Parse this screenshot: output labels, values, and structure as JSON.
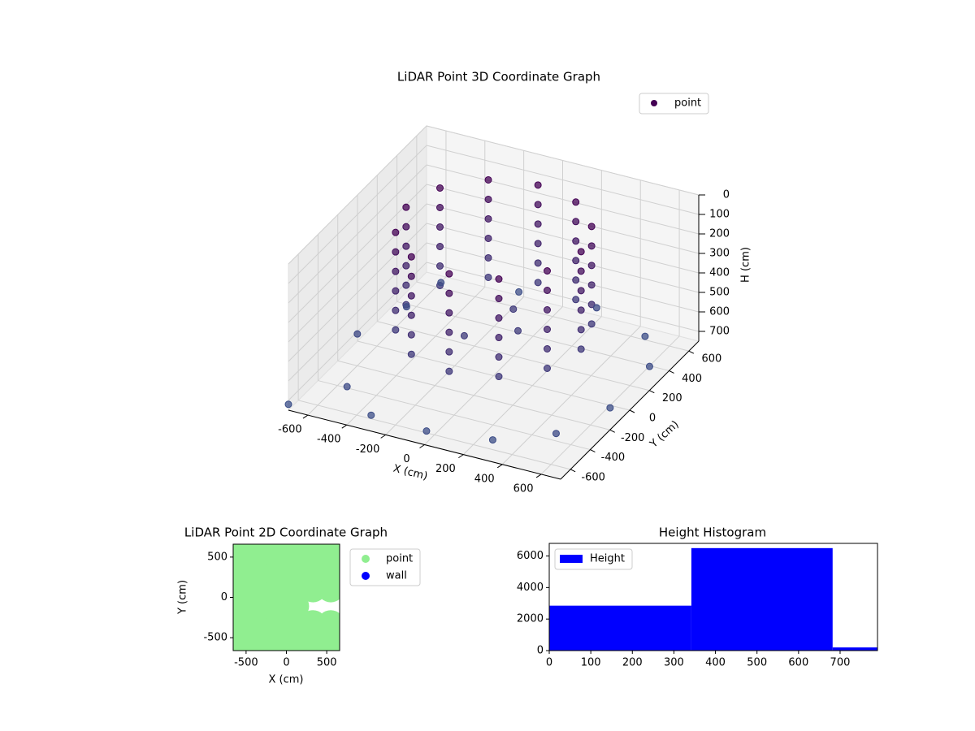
{
  "chart_data": [
    {
      "type": "scatter3d",
      "title": "LiDAR Point 3D Coordinate Graph",
      "xlabel": "X (cm)",
      "ylabel": "Y (cm)",
      "zlabel": "H (cm)",
      "xlim": [
        -700,
        700
      ],
      "ylim": [
        -700,
        700
      ],
      "zlim": [
        0,
        750
      ],
      "z_inverted": true,
      "xticks": [
        -600,
        -400,
        -200,
        0,
        200,
        400,
        600
      ],
      "yticks": [
        -600,
        -400,
        -200,
        0,
        200,
        400,
        600
      ],
      "zticks": [
        0,
        100,
        200,
        300,
        400,
        500,
        600,
        700
      ],
      "legend": "upper right",
      "colors": [
        "#440154",
        "#3b528b"
      ],
      "series": [
        {
          "name": "point",
          "color": "#440154",
          "x": [
            450,
            390,
            225,
            0,
            -225,
            -390,
            -450,
            -390,
            -225,
            0,
            225,
            390,
            450,
            390,
            225,
            0,
            -225,
            -390,
            -450,
            -390,
            -225,
            0,
            225,
            390,
            450,
            390,
            225,
            0,
            -225,
            -390,
            -450,
            -390,
            -225,
            0,
            225,
            390,
            450,
            390,
            225,
            0,
            -225,
            -390,
            -450,
            -390,
            -225,
            0,
            225,
            390,
            450,
            390,
            225,
            0,
            -225,
            -390,
            -450,
            -390,
            -225,
            0,
            225,
            390,
            450,
            390,
            225,
            0,
            -225,
            -390,
            -450,
            -390,
            -225,
            0,
            225,
            390,
            -650,
            -600,
            -500,
            -300,
            0,
            300,
            550,
            650,
            650,
            500,
            200,
            -200,
            -550,
            -100,
            100,
            0,
            -700
          ],
          "y": [
            0,
            225,
            390,
            450,
            390,
            225,
            0,
            -225,
            -390,
            -450,
            -390,
            -225,
            0,
            225,
            390,
            450,
            390,
            225,
            0,
            -225,
            -390,
            -450,
            -390,
            -225,
            0,
            225,
            390,
            450,
            390,
            225,
            0,
            -225,
            -390,
            -450,
            -390,
            -225,
            0,
            225,
            390,
            450,
            390,
            225,
            0,
            -225,
            -390,
            -450,
            -390,
            -225,
            0,
            225,
            390,
            450,
            390,
            225,
            0,
            -225,
            -390,
            -450,
            -390,
            -225,
            0,
            225,
            390,
            450,
            390,
            225,
            0,
            -225,
            -390,
            -450,
            -390,
            -225,
            -100,
            300,
            -500,
            -650,
            -680,
            -600,
            -450,
            -100,
            300,
            550,
            650,
            650,
            550,
            -100,
            50,
            200,
            -700
          ],
          "h": [
            0,
            0,
            0,
            0,
            0,
            0,
            0,
            0,
            0,
            0,
            0,
            0,
            100,
            100,
            100,
            100,
            100,
            100,
            100,
            100,
            100,
            100,
            100,
            100,
            200,
            200,
            200,
            200,
            200,
            200,
            200,
            200,
            200,
            200,
            200,
            200,
            300,
            300,
            300,
            300,
            300,
            300,
            300,
            300,
            300,
            300,
            300,
            300,
            400,
            400,
            400,
            400,
            400,
            400,
            400,
            400,
            400,
            400,
            400,
            400,
            500,
            500,
            500,
            500,
            500,
            500,
            500,
            500,
            500,
            500,
            500,
            500,
            650,
            700,
            680,
            700,
            690,
            700,
            680,
            700,
            690,
            700,
            680,
            700,
            690,
            520,
            520,
            510,
            720
          ]
        }
      ]
    },
    {
      "type": "scatter",
      "title": "LiDAR Point 2D Coordinate Graph",
      "xlabel": "X (cm)",
      "ylabel": "Y (cm)",
      "xlim": [
        -660,
        660
      ],
      "ylim": [
        -660,
        660
      ],
      "xticks": [
        -500,
        0,
        500
      ],
      "yticks": [
        -500,
        0,
        500
      ],
      "legend": "outside right",
      "series": [
        {
          "name": "point",
          "color": "#90ee90",
          "x": [
            -550,
            -330,
            -110,
            110,
            330,
            550,
            -550,
            -330,
            -110,
            110,
            330,
            550,
            -550,
            -330,
            -110,
            110,
            -550,
            -330,
            -110,
            110,
            330,
            550,
            -550,
            -330,
            -110,
            110,
            330,
            550,
            -550,
            -330,
            -110,
            110,
            330,
            550
          ],
          "y": [
            -550,
            -550,
            -550,
            -550,
            -550,
            -550,
            -330,
            -330,
            -330,
            -330,
            -330,
            -330,
            -110,
            -110,
            -110,
            -110,
            110,
            110,
            110,
            110,
            110,
            110,
            330,
            330,
            330,
            330,
            330,
            330,
            550,
            550,
            550,
            550,
            550,
            550
          ]
        },
        {
          "name": "wall",
          "color": "#0000ff",
          "x": [],
          "y": []
        }
      ]
    },
    {
      "type": "histogram",
      "title": "Height Histogram",
      "bins": [
        0,
        342,
        682,
        790
      ],
      "values": [
        2850,
        6500,
        200
      ],
      "color": "#0000ff",
      "xlim": [
        0,
        790
      ],
      "ylim": [
        0,
        6800
      ],
      "xticks": [
        0,
        100,
        200,
        300,
        400,
        500,
        600,
        700
      ],
      "yticks": [
        0,
        2000,
        4000,
        6000
      ],
      "legend": "upper left",
      "series_name": "Height"
    }
  ]
}
